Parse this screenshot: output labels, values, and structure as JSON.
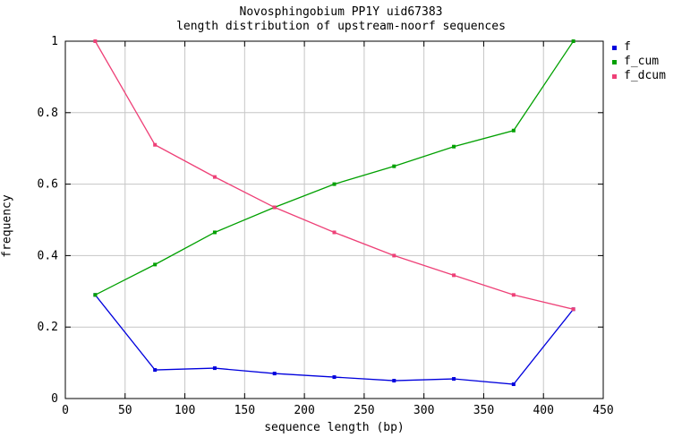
{
  "title": {
    "line1": "Novosphingobium PP1Y uid67383",
    "line2": "length distribution of upstream-noorf sequences"
  },
  "colors": {
    "background": "#ffffff",
    "frame": "#000000",
    "grid": "#c6c6c6",
    "text": "#000000",
    "series_f": "#0000dd",
    "series_f_cum": "#00a000",
    "series_f_dcum": "#ee4077"
  },
  "chart_data": {
    "type": "line",
    "title": "Novosphingobium PP1Y uid67383",
    "subtitle": "length distribution of upstream-noorf sequences",
    "xlabel": "sequence length (bp)",
    "ylabel": "frequency",
    "xlim": [
      0,
      450
    ],
    "ylim": [
      0,
      1
    ],
    "grid": true,
    "legend_position": "outside-top-right",
    "xticks": [
      0,
      50,
      100,
      150,
      200,
      250,
      300,
      350,
      400,
      450
    ],
    "xtick_labels": [
      "0",
      "50",
      "100",
      "150",
      "200",
      "250",
      "300",
      "350",
      "400",
      "450"
    ],
    "yticks": [
      0,
      0.2,
      0.4,
      0.6,
      0.8,
      1
    ],
    "ytick_labels": [
      "0",
      "0.2",
      "0.4",
      "0.6",
      "0.8",
      "1"
    ],
    "x": [
      25,
      75,
      125,
      175,
      225,
      275,
      325,
      375,
      425
    ],
    "series": [
      {
        "name": "f",
        "color": "#0000dd",
        "marker": "square",
        "values": [
          0.29,
          0.08,
          0.085,
          0.07,
          0.06,
          0.05,
          0.055,
          0.04,
          0.25
        ]
      },
      {
        "name": "f_cum",
        "color": "#00a000",
        "marker": "square",
        "values": [
          0.29,
          0.375,
          0.465,
          0.535,
          0.6,
          0.65,
          0.705,
          0.75,
          1.0
        ]
      },
      {
        "name": "f_dcum",
        "color": "#ee4077",
        "marker": "square",
        "values": [
          1.0,
          0.71,
          0.62,
          0.535,
          0.465,
          0.4,
          0.345,
          0.29,
          0.25
        ]
      }
    ]
  }
}
